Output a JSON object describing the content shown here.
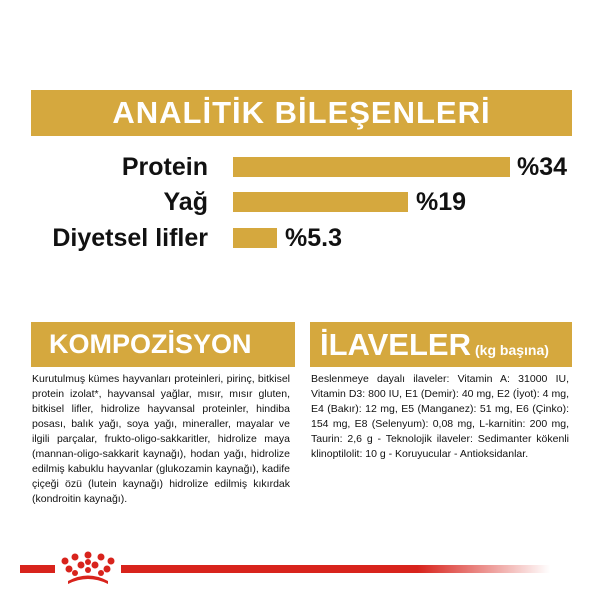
{
  "analytic": {
    "title": "ANALİTİK BİLEŞENLERİ",
    "items": [
      {
        "label": "Protein",
        "value_text": "%34",
        "value": 34
      },
      {
        "label": "Yağ",
        "value_text": "%19",
        "value": 19
      },
      {
        "label": "Diyetsel lifler",
        "value_text": "%5.3",
        "value": 5.3
      }
    ]
  },
  "composition": {
    "title": "KOMPOZİSYON",
    "text": "Kurutulmuş kümes hayvanları proteinleri, pirinç, bitkisel protein izolat*, hayvansal yağlar, mısır, mısır gluten, bitkisel lifler, hidrolize hayvansal proteinler, hindiba posası, balık yağı, soya yağı, mineraller, mayalar ve ilgili parçalar, frukto-oligo-sakkaritler, hidrolize maya (mannan-oligo-sakkarit kaynağı), hodan yağı, hidrolize edilmiş kabuklu hayvanlar (glukozamin kaynağı), kadife çiçeği özü (lutein kaynağı) hidrolize edilmiş kıkırdak (kondroitin kaynağı)."
  },
  "additives": {
    "title": "İLAVELER",
    "subtitle": "(kg başına)",
    "text": "Beslenmeye dayalı ilaveler: Vitamin A: 31000 IU, Vitamin D3: 800 IU, E1 (Demir): 40 mg, E2 (İyot): 4 mg, E4 (Bakır): 12 mg, E5 (Manganez): 51 mg, E6 (Çinko): 154 mg, E8 (Selenyum): 0,08 mg, L-karnitin: 200 mg, Taurin: 2,6 g - Teknolojik ilaveler: Sedimanter kökenli klinoptilolit: 10 g - Koruyucular - Antioksidanlar."
  },
  "colors": {
    "gold": "#D5A83E",
    "brand_red": "#D8231C"
  },
  "logo": {
    "icon": "royal-canin-crown-icon"
  }
}
